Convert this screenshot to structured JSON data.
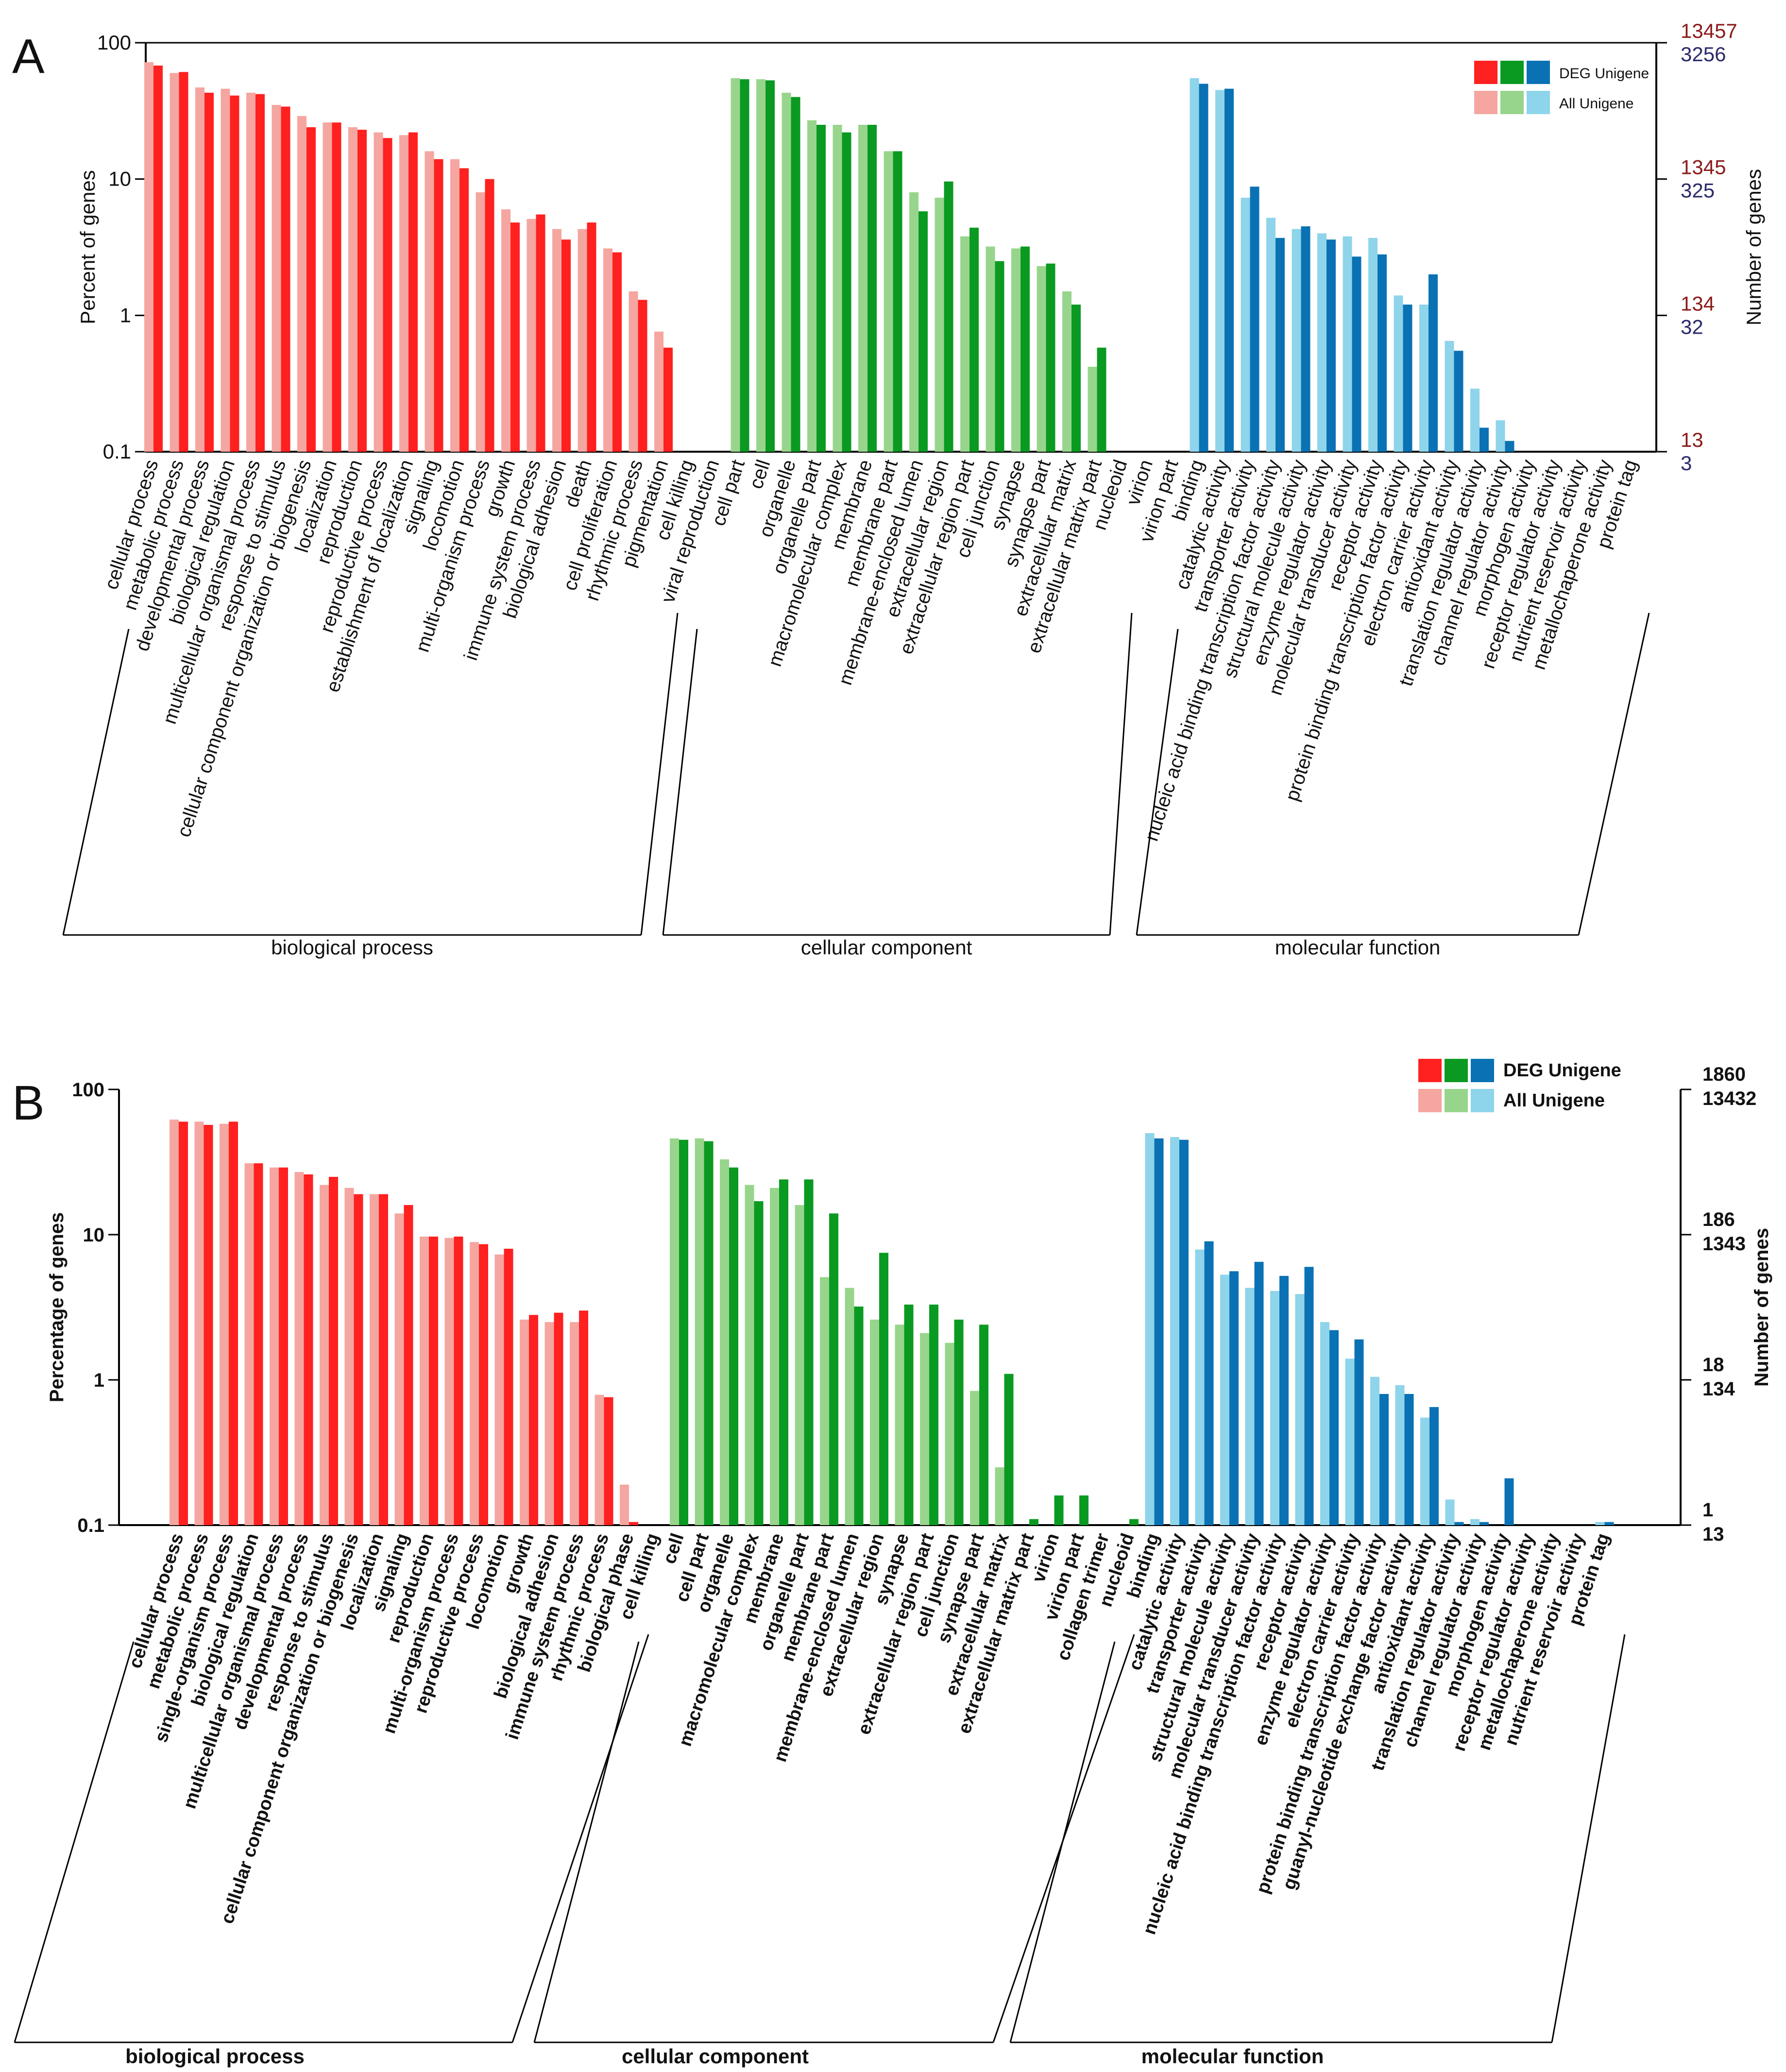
{
  "chart_data": [
    {
      "panel": "A",
      "type": "bar",
      "scale": "log",
      "ylabel": "Percent of genes",
      "ylabel_right": "Number of genes",
      "y_ticks": [
        "100",
        "10",
        "1",
        "0.1"
      ],
      "ylim": [
        0.1,
        100
      ],
      "right_ticks_all": [
        "13457",
        "1345",
        "134",
        "13"
      ],
      "right_ticks_deg": [
        "3256",
        "325",
        "32",
        "3"
      ],
      "legend": [
        {
          "label": "DEG Unigene",
          "colors": [
            "#ff2020",
            "#0a9a22",
            "#0a72b4"
          ]
        },
        {
          "label": "All Unigene",
          "colors": [
            "#f5a6a0",
            "#98d58c",
            "#8ed4ea"
          ]
        }
      ],
      "groups": [
        {
          "name": "biological process",
          "colors": {
            "all": "#f5a6a0",
            "deg": "#ff2020"
          },
          "categories": [
            "cellular process",
            "metabolic process",
            "developmental process",
            "biological regulation",
            "multicellular organismal process",
            "response to stimulus",
            "cellular component organization or biogenesis",
            "localization",
            "reproduction",
            "reproductive process",
            "establishment of localization",
            "signaling",
            "locomotion",
            "multi-organism process",
            "growth",
            "immune system process",
            "biological adhesion",
            "death",
            "cell proliferation",
            "rhythmic process",
            "pigmentation",
            "cell killing",
            "viral reproduction"
          ],
          "all": [
            72,
            60,
            47,
            46,
            43,
            35,
            29,
            26,
            24,
            22,
            21,
            16,
            14,
            8,
            6,
            5.1,
            4.3,
            4.3,
            3.1,
            1.5,
            0.76,
            0,
            0
          ],
          "deg": [
            68,
            61,
            43,
            41,
            42,
            34,
            24,
            26,
            23,
            20,
            22,
            14,
            12,
            10,
            4.8,
            5.5,
            3.6,
            4.8,
            2.9,
            1.3,
            0.58,
            0,
            0
          ]
        },
        {
          "name": "cellular component",
          "colors": {
            "all": "#98d58c",
            "deg": "#0a9a22"
          },
          "categories": [
            "cell part",
            "cell",
            "organelle",
            "organelle part",
            "macromolecular complex",
            "membrane",
            "membrane part",
            "membrane-enclosed lumen",
            "extracellular region",
            "extracellular region part",
            "cell junction",
            "synapse",
            "synapse part",
            "extracellular matrix",
            "extracellular matrix part",
            "nucleoid",
            "virion",
            "virion part"
          ],
          "all": [
            55,
            54,
            43,
            27,
            25,
            25,
            16,
            8,
            7.3,
            3.8,
            3.2,
            3.1,
            2.3,
            1.5,
            0.42,
            0,
            0,
            0
          ],
          "deg": [
            54,
            53,
            40,
            25,
            22,
            25,
            16,
            5.8,
            9.6,
            4.4,
            2.5,
            3.2,
            2.4,
            1.2,
            0.58,
            0,
            0,
            0
          ]
        },
        {
          "name": "molecular function",
          "colors": {
            "all": "#8ed4ea",
            "deg": "#0a72b4"
          },
          "categories": [
            "binding",
            "catalytic activity",
            "transporter activity",
            "nucleic acid binding transcription factor activity",
            "structural molecule activity",
            "enzyme regulator activity",
            "molecular transducer activity",
            "receptor activity",
            "protein binding transcription factor activity",
            "electron carrier activity",
            "antioxidant activity",
            "translation regulator activity",
            "channel regulator activity",
            "morphogen activity",
            "receptor regulator activity",
            "nutrient reservoir activity",
            "metallochaperone activity",
            "protein tag"
          ],
          "all": [
            55,
            45,
            7.3,
            5.2,
            4.3,
            4,
            3.8,
            3.7,
            1.4,
            1.2,
            0.65,
            0.29,
            0.17,
            0,
            0,
            0,
            0,
            0
          ],
          "deg": [
            50,
            46,
            8.8,
            3.7,
            4.5,
            3.6,
            2.7,
            2.8,
            1.2,
            2,
            0.55,
            0.15,
            0.12,
            0,
            0,
            0,
            0,
            0
          ]
        }
      ]
    },
    {
      "panel": "B",
      "type": "bar",
      "scale": "log",
      "ylabel": "Percentage of genes",
      "ylabel_right": "Number of genes",
      "y_ticks": [
        "100",
        "10",
        "1",
        "0.1"
      ],
      "ylim": [
        0.1,
        100
      ],
      "right_ticks_deg": [
        "1860",
        "186",
        "18",
        "1"
      ],
      "right_ticks_all": [
        "13432",
        "1343",
        "134",
        "13"
      ],
      "legend": [
        {
          "label": "DEG Unigene",
          "colors": [
            "#ff2020",
            "#0a9a22",
            "#0a72b4"
          ]
        },
        {
          "label": "All Unigene",
          "colors": [
            "#f5a6a0",
            "#98d58c",
            "#8ed4ea"
          ]
        }
      ],
      "groups": [
        {
          "name": "biological process",
          "colors": {
            "all": "#f5a6a0",
            "deg": "#ff2020"
          },
          "categories": [
            "cellular process",
            "metabolic process",
            "single-organism process",
            "biological regulation",
            "multicellular organismal process",
            "developmental process",
            "response to stimulus",
            "cellular component organization or biogenesis",
            "localization",
            "signaling",
            "reproduction",
            "multi-organism process",
            "reproductive process",
            "locomotion",
            "growth",
            "biological adhesion",
            "immune system process",
            "rhythmic process",
            "biological phase",
            "cell killing"
          ],
          "all": [
            62,
            60,
            58,
            31,
            29,
            27,
            22,
            21,
            19,
            14,
            9.7,
            9.5,
            8.9,
            7.3,
            2.6,
            2.5,
            2.5,
            0.79,
            0.19,
            0
          ],
          "deg": [
            60,
            57,
            60,
            31,
            29,
            26,
            25,
            19,
            19,
            16,
            9.7,
            9.7,
            8.6,
            8,
            2.8,
            2.9,
            3,
            0.76,
            0.105,
            0
          ]
        },
        {
          "name": "cellular component",
          "colors": {
            "all": "#98d58c",
            "deg": "#0a9a22"
          },
          "categories": [
            "cell",
            "cell part",
            "organelle",
            "macromolecular complex",
            "membrane",
            "organelle part",
            "membrane part",
            "membrane-enclosed lumen",
            "extracellular region",
            "synapse",
            "extracellular region part",
            "cell junction",
            "synapse part",
            "extracellular matrix",
            "extracellular matrix part",
            "virion",
            "virion part",
            "collagen trimer",
            "nucleoid"
          ],
          "all": [
            46,
            46,
            33,
            22,
            21,
            16,
            5.1,
            4.3,
            2.6,
            2.4,
            2.1,
            1.8,
            0.84,
            0.25,
            0,
            0,
            0,
            0,
            0
          ],
          "deg": [
            45,
            44,
            29,
            17,
            24,
            24,
            14,
            3.2,
            7.5,
            3.3,
            3.3,
            2.6,
            2.4,
            1.1,
            0.11,
            0.16,
            0.16,
            0,
            0.11
          ]
        },
        {
          "name": "molecular function",
          "colors": {
            "all": "#8ed4ea",
            "deg": "#0a72b4"
          },
          "categories": [
            "binding",
            "catalytic activity",
            "transporter activity",
            "structural molecule activity",
            "molecular transducer activity",
            "nucleic acid binding transcription factor activity",
            "receptor activity",
            "enzyme regulator activity",
            "electron carrier activity",
            "protein binding transcription factor activity",
            "guanyl-nucleotide exchange factor activity",
            "antioxidant activity",
            "translation regulator activity",
            "channel regulator activity",
            "morphogen activity",
            "receptor regulator activity",
            "metallochaperone activity",
            "nutrient reservoir activity",
            "protein tag"
          ],
          "all": [
            50,
            47,
            7.9,
            5.3,
            4.3,
            4.1,
            3.9,
            2.5,
            1.4,
            1.05,
            0.92,
            0.55,
            0.15,
            0.11,
            0,
            0,
            0,
            0,
            0.105
          ],
          "deg": [
            46,
            45,
            9,
            5.6,
            6.5,
            5.2,
            6,
            2.2,
            1.9,
            0.8,
            0.8,
            0.65,
            0.105,
            0.105,
            0.21,
            0,
            0,
            0,
            0.105
          ]
        }
      ]
    }
  ]
}
